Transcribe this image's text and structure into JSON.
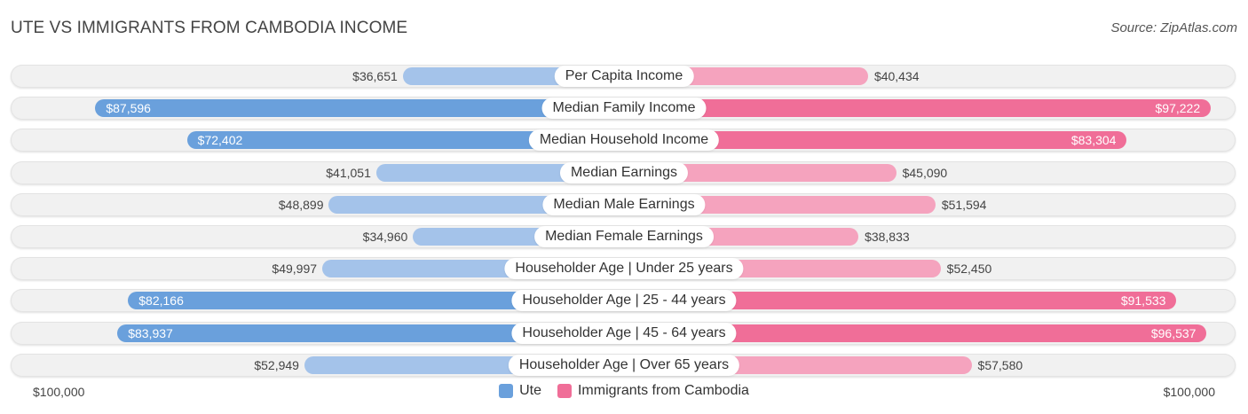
{
  "header": {
    "title": "UTE VS IMMIGRANTS FROM CAMBODIA INCOME",
    "source": "Source: ZipAtlas.com"
  },
  "colors": {
    "ute_strong": "#6aa0dc",
    "ute_light": "#a4c3ea",
    "cambodia_strong": "#f06e98",
    "cambodia_light": "#f5a3be"
  },
  "chart_data": {
    "type": "bar",
    "orientation": "horizontal-diverging",
    "title": "UTE VS IMMIGRANTS FROM CAMBODIA INCOME",
    "max": 100000,
    "axis": {
      "left_label": "$100,000",
      "right_label": "$100,000"
    },
    "categories": [
      "Per Capita Income",
      "Median Family Income",
      "Median Household Income",
      "Median Earnings",
      "Median Male Earnings",
      "Median Female Earnings",
      "Householder Age | Under 25 years",
      "Householder Age | 25 - 44 years",
      "Householder Age | 45 - 64 years",
      "Householder Age | Over 65 years"
    ],
    "series": [
      {
        "name": "Ute",
        "values": [
          36651,
          87596,
          72402,
          41051,
          48899,
          34960,
          49997,
          82166,
          83937,
          52949
        ],
        "labels": [
          "$36,651",
          "$87,596",
          "$72,402",
          "$41,051",
          "$48,899",
          "$34,960",
          "$49,997",
          "$82,166",
          "$83,937",
          "$52,949"
        ]
      },
      {
        "name": "Immigrants from Cambodia",
        "values": [
          40434,
          97222,
          83304,
          45090,
          51594,
          38833,
          52450,
          91533,
          96537,
          57580
        ],
        "labels": [
          "$40,434",
          "$97,222",
          "$83,304",
          "$45,090",
          "$51,594",
          "$38,833",
          "$52,450",
          "$91,533",
          "$96,537",
          "$57,580"
        ]
      }
    ],
    "legend": [
      "Ute",
      "Immigrants from Cambodia"
    ],
    "legend_position": "bottom-center"
  }
}
